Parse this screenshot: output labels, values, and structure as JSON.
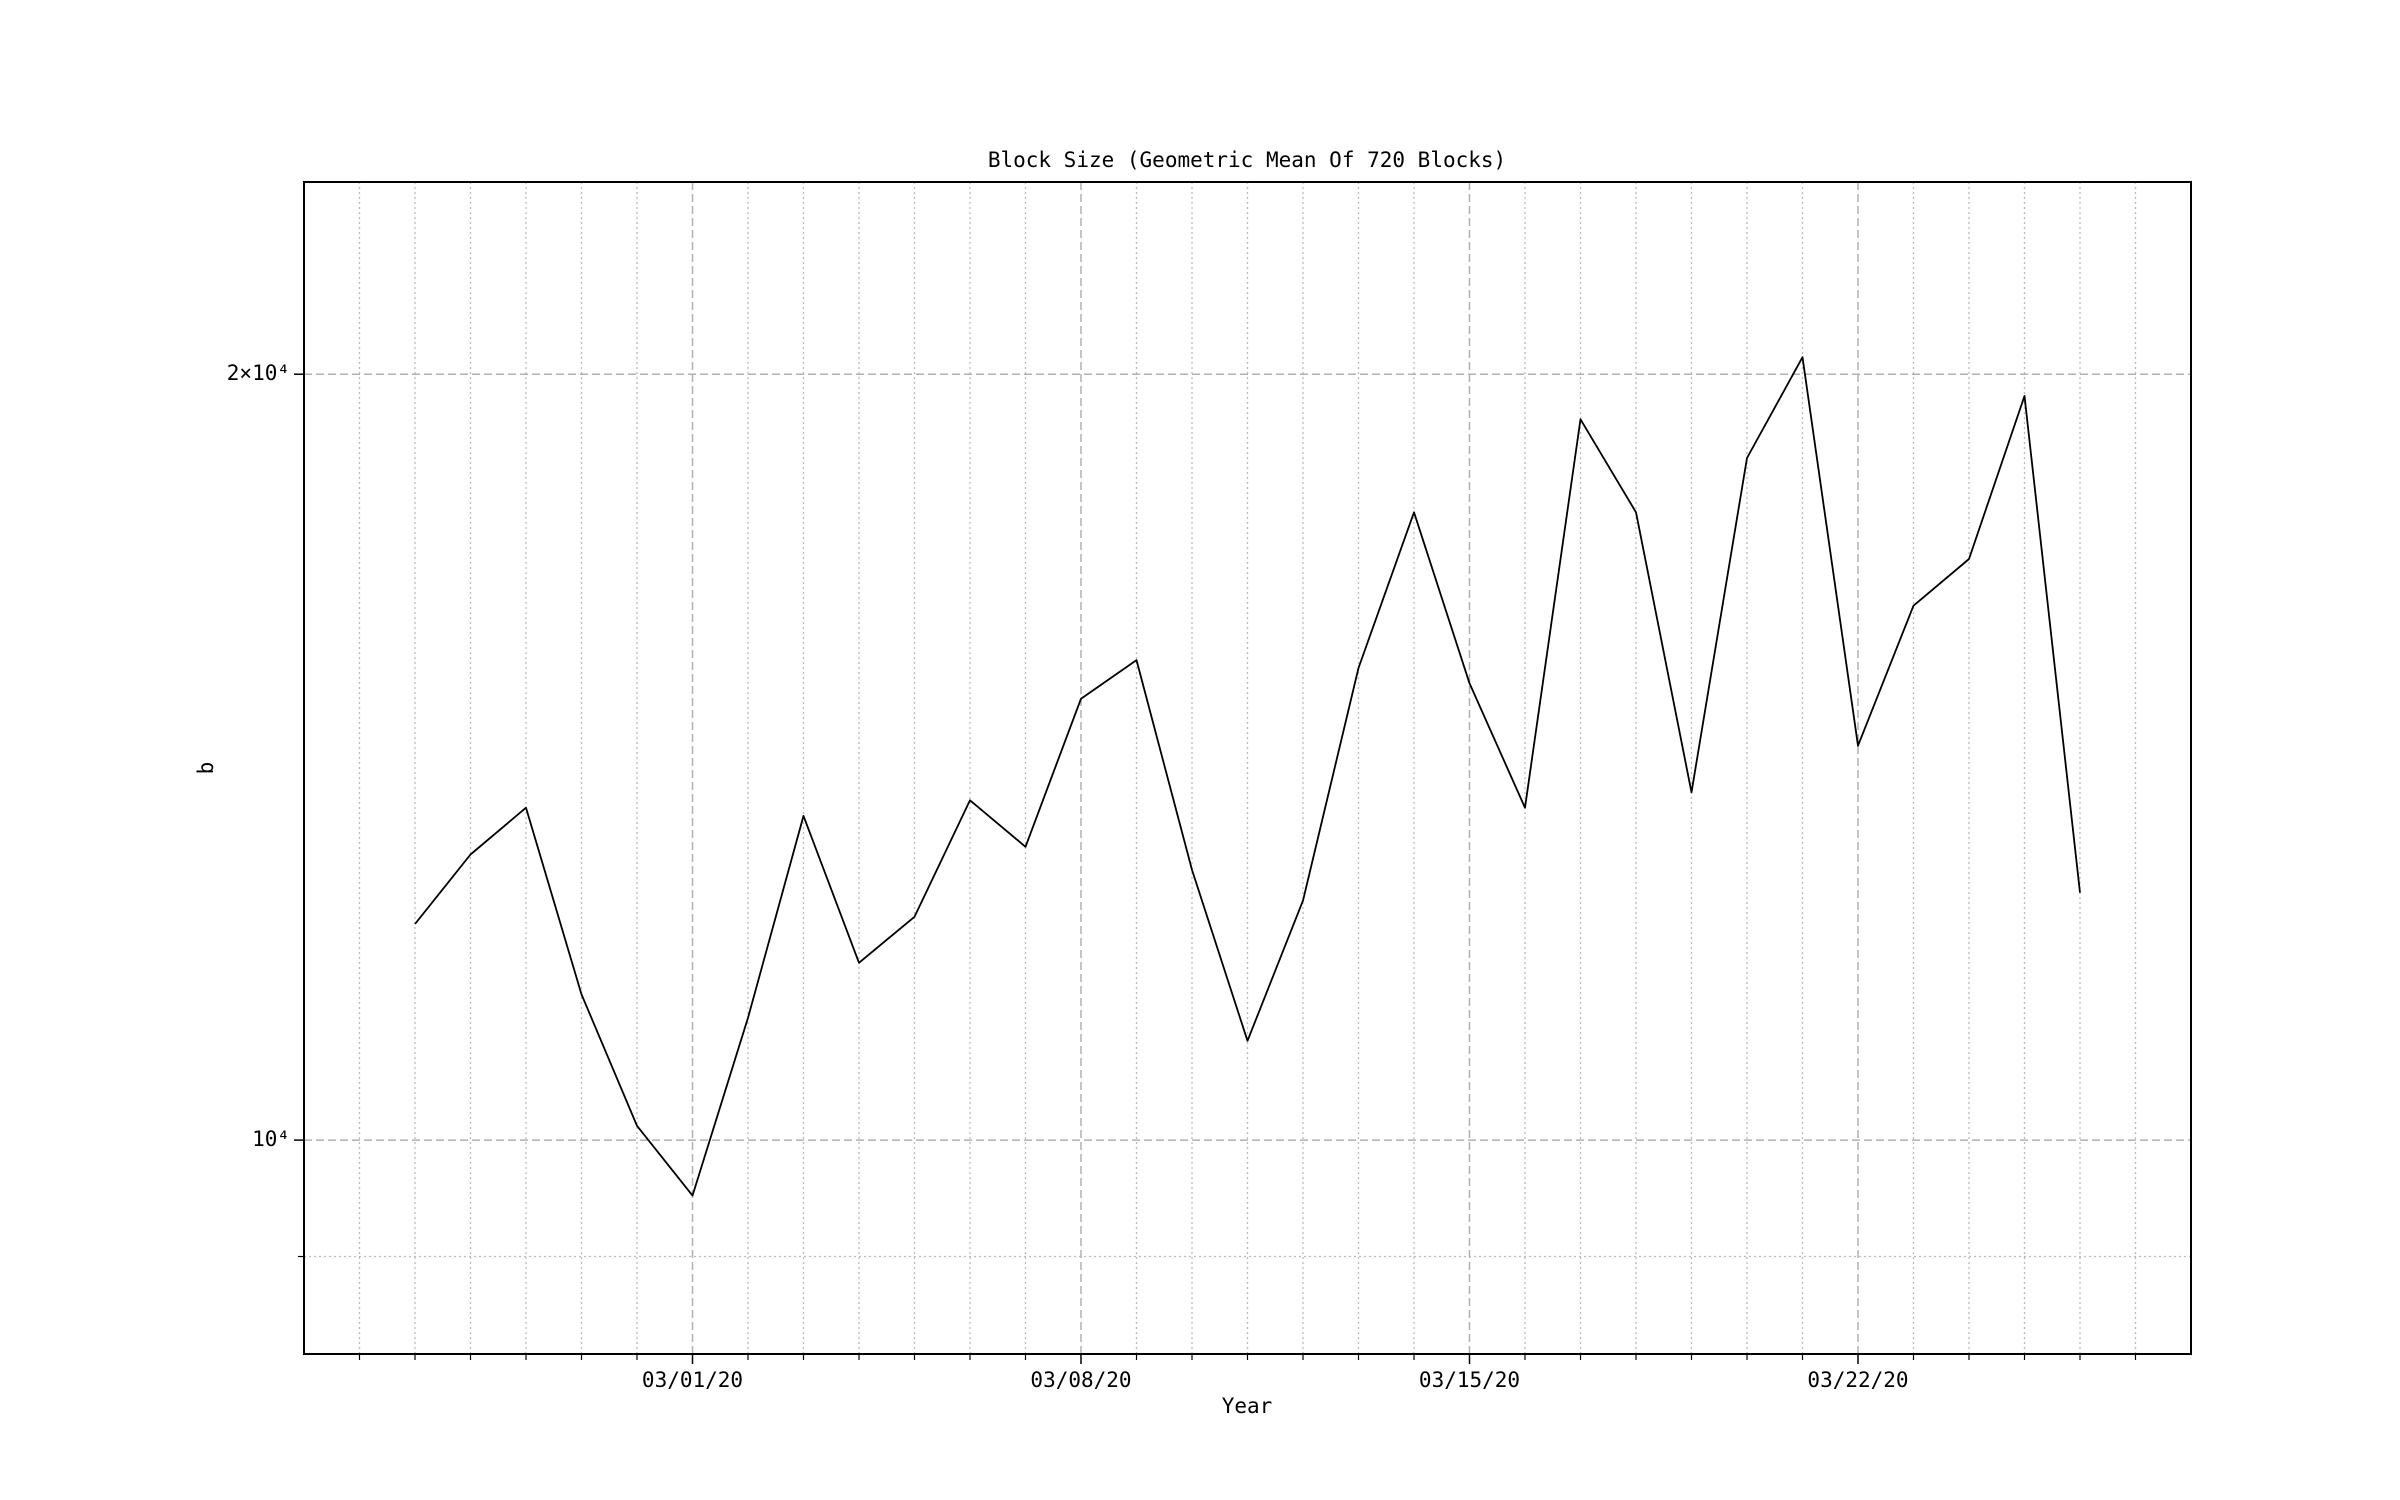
{
  "chart_data": {
    "type": "line",
    "title": "Block Size (Geometric Mean Of 720 Blocks)",
    "xlabel": "Year",
    "ylabel": "b",
    "log_y": true,
    "grid": true,
    "x": [
      "02/25/20",
      "02/26/20",
      "02/27/20",
      "02/28/20",
      "02/29/20",
      "03/01/20",
      "03/02/20",
      "03/03/20",
      "03/04/20",
      "03/05/20",
      "03/06/20",
      "03/07/20",
      "03/08/20",
      "03/09/20",
      "03/10/20",
      "03/11/20",
      "03/12/20",
      "03/13/20",
      "03/14/20",
      "03/15/20",
      "03/16/20",
      "03/17/20",
      "03/18/20",
      "03/19/20",
      "03/20/20",
      "03/21/20",
      "03/22/20",
      "03/23/20",
      "03/24/20",
      "03/25/20",
      "03/26/20"
    ],
    "series": [
      {
        "color": "#000000",
        "values": [
          12160,
          12950,
          13510,
          11410,
          10130,
          9510,
          11170,
          13410,
          11740,
          12240,
          13600,
          13040,
          14910,
          15440,
          12770,
          10940,
          12420,
          15330,
          17650,
          15120,
          13510,
          19200,
          17650,
          13700,
          18540,
          20310,
          14290,
          16220,
          16920,
          19610,
          12510
        ]
      }
    ],
    "xlim": [
      "02/23/20",
      "03/28/20"
    ],
    "xticks": [
      "03/01/20",
      "03/08/20",
      "03/15/20",
      "03/22/20"
    ],
    "x_minor_ticks": [
      "02/24/20",
      "02/25/20",
      "02/26/20",
      "02/27/20",
      "02/28/20",
      "02/29/20",
      "03/02/20",
      "03/03/20",
      "03/04/20",
      "03/05/20",
      "03/06/20",
      "03/07/20",
      "03/09/20",
      "03/10/20",
      "03/11/20",
      "03/12/20",
      "03/13/20",
      "03/14/20",
      "03/16/20",
      "03/17/20",
      "03/18/20",
      "03/19/20",
      "03/20/20",
      "03/21/20",
      "03/23/20",
      "03/24/20",
      "03/25/20",
      "03/26/20",
      "03/27/20"
    ],
    "ylim": [
      8240,
      23800
    ],
    "yticks": [
      {
        "value": 10000,
        "label": "10⁴"
      },
      {
        "value": 20000,
        "label": "2×10⁴"
      }
    ],
    "y_minor_ticks": [
      9000
    ]
  }
}
